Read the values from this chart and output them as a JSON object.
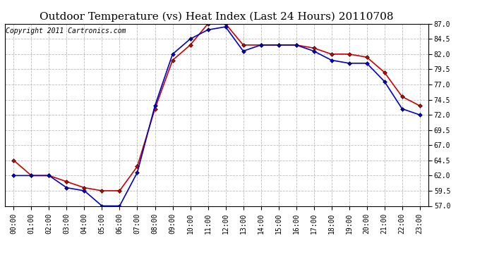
{
  "title": "Outdoor Temperature (vs) Heat Index (Last 24 Hours) 20110708",
  "copyright_text": "Copyright 2011 Cartronics.com",
  "hours": [
    "00:00",
    "01:00",
    "02:00",
    "03:00",
    "04:00",
    "05:00",
    "06:00",
    "07:00",
    "08:00",
    "09:00",
    "10:00",
    "11:00",
    "12:00",
    "13:00",
    "14:00",
    "15:00",
    "16:00",
    "17:00",
    "18:00",
    "19:00",
    "20:00",
    "21:00",
    "22:00",
    "23:00"
  ],
  "temp": [
    64.5,
    62.0,
    62.0,
    61.0,
    60.0,
    59.5,
    59.5,
    63.5,
    73.0,
    81.0,
    83.5,
    87.0,
    87.0,
    83.5,
    83.5,
    83.5,
    83.5,
    83.0,
    82.0,
    82.0,
    81.5,
    79.0,
    75.0,
    73.5
  ],
  "heat_index": [
    62.0,
    62.0,
    62.0,
    60.0,
    59.5,
    57.0,
    57.0,
    62.5,
    73.5,
    82.0,
    84.5,
    86.0,
    86.5,
    82.5,
    83.5,
    83.5,
    83.5,
    82.5,
    81.0,
    80.5,
    80.5,
    77.5,
    73.0,
    72.0
  ],
  "temp_color": "#cc0000",
  "heat_index_color": "#0000cc",
  "ylim_min": 57.0,
  "ylim_max": 87.0,
  "yticks": [
    57.0,
    59.5,
    62.0,
    64.5,
    67.0,
    69.5,
    72.0,
    74.5,
    77.0,
    79.5,
    82.0,
    84.5,
    87.0
  ],
  "bg_color": "#ffffff",
  "grid_color": "#bbbbbb",
  "title_fontsize": 11,
  "copyright_fontsize": 7,
  "tick_fontsize": 7,
  "marker_size": 3.0,
  "line_width": 1.2
}
